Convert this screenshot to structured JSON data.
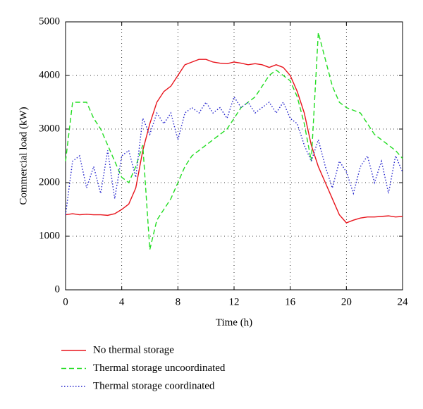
{
  "chart_data": {
    "type": "line",
    "xlabel": "Time (h)",
    "ylabel": "Commercial load (kW)",
    "x": [
      0,
      0.5,
      1,
      1.5,
      2,
      2.5,
      3,
      3.5,
      4,
      4.5,
      5,
      5.5,
      6,
      6.5,
      7,
      7.5,
      8,
      8.5,
      9,
      9.5,
      10,
      10.5,
      11,
      11.5,
      12,
      12.5,
      13,
      13.5,
      14,
      14.5,
      15,
      15.5,
      16,
      16.5,
      17,
      17.5,
      18,
      18.5,
      19,
      19.5,
      20,
      20.5,
      21,
      21.5,
      22,
      22.5,
      23,
      23.5,
      24
    ],
    "series": [
      {
        "name": "No thermal storage",
        "color": "#e8141c",
        "linestyle": "solid",
        "values": [
          1400,
          1420,
          1400,
          1410,
          1400,
          1400,
          1390,
          1420,
          1500,
          1600,
          1900,
          2600,
          3100,
          3500,
          3700,
          3800,
          4000,
          4200,
          4250,
          4300,
          4300,
          4250,
          4230,
          4220,
          4250,
          4230,
          4200,
          4220,
          4200,
          4150,
          4200,
          4150,
          4000,
          3700,
          3300,
          2700,
          2300,
          2000,
          1700,
          1400,
          1250,
          1300,
          1340,
          1360,
          1360,
          1370,
          1380,
          1360,
          1370
        ]
      },
      {
        "name": "Thermal storage uncoordinated",
        "color": "#22dd22",
        "linestyle": "dashed",
        "values": [
          2400,
          3500,
          3500,
          3500,
          3200,
          3000,
          2700,
          2400,
          2100,
          2000,
          2300,
          2700,
          750,
          1300,
          1500,
          1700,
          2000,
          2300,
          2500,
          2600,
          2700,
          2800,
          2900,
          3000,
          3200,
          3400,
          3500,
          3600,
          3800,
          4000,
          4100,
          4000,
          3900,
          3600,
          3100,
          2400,
          4800,
          4300,
          3800,
          3500,
          3400,
          3350,
          3300,
          3100,
          2900,
          2800,
          2700,
          2600,
          2450
        ]
      },
      {
        "name": "Thermal storage coordinated",
        "color": "#2222cc",
        "linestyle": "dotted",
        "values": [
          1400,
          2400,
          2500,
          1900,
          2300,
          1800,
          2600,
          1700,
          2500,
          2600,
          2100,
          3200,
          2900,
          3300,
          3100,
          3300,
          2800,
          3300,
          3400,
          3300,
          3500,
          3300,
          3400,
          3200,
          3600,
          3400,
          3500,
          3300,
          3400,
          3500,
          3300,
          3500,
          3200,
          3100,
          2700,
          2400,
          2800,
          2300,
          1900,
          2400,
          2200,
          1800,
          2300,
          2500,
          2000,
          2400,
          1800,
          2500,
          2200
        ]
      }
    ],
    "xlim": [
      0,
      24
    ],
    "xticks": [
      0,
      4,
      8,
      12,
      16,
      20,
      24
    ],
    "ylim": [
      0,
      5000
    ],
    "yticks": [
      0,
      1000,
      2000,
      3000,
      4000,
      5000
    ],
    "grid": true
  }
}
